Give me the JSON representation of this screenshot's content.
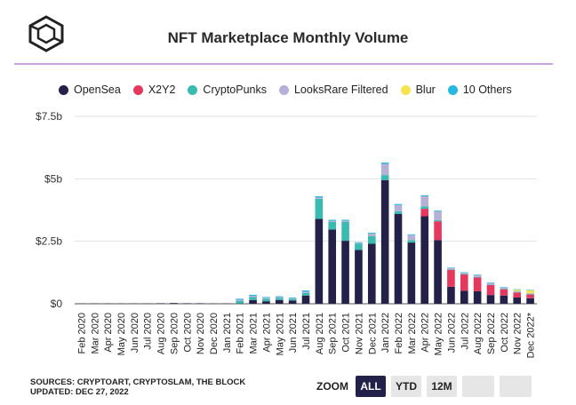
{
  "title": "NFT Marketplace Monthly Volume",
  "logo_icon": "cube-logo-icon",
  "legend": [
    {
      "name": "OpenSea",
      "color": "#23204a"
    },
    {
      "name": "X2Y2",
      "color": "#e5385e"
    },
    {
      "name": "CryptoPunks",
      "color": "#3bbbb0"
    },
    {
      "name": "LooksRare Filtered",
      "color": "#b6b0d9"
    },
    {
      "name": "Blur",
      "color": "#f5e34f"
    },
    {
      "name": "10 Others",
      "color": "#27b7e3"
    }
  ],
  "footer": {
    "sources": "SOURCES: CRYPTOART, CRYPTOSLAM, THE BLOCK",
    "updated": "UPDATED: DEC 27, 2022"
  },
  "zoom": {
    "label": "ZOOM",
    "buttons": [
      {
        "label": "ALL",
        "active": true
      },
      {
        "label": "YTD",
        "active": false
      },
      {
        "label": "12M",
        "active": false
      },
      {
        "label": "",
        "active": false
      },
      {
        "label": "",
        "active": false
      }
    ]
  },
  "chart_data": {
    "type": "bar",
    "stacked": true,
    "title": "NFT Marketplace Monthly Volume",
    "xlabel": "",
    "ylabel": "",
    "ylim": [
      0,
      7.5
    ],
    "y_ticks": [
      "$0",
      "$2.5b",
      "$5b",
      "$7.5b"
    ],
    "y_tick_values": [
      0,
      2.5,
      5,
      7.5
    ],
    "grid": true,
    "legend_position": "top",
    "categories": [
      "Feb 2020",
      "Mar 2020",
      "Apr 2020",
      "May 2020",
      "Jun 2020",
      "Jul 2020",
      "Aug 2020",
      "Sep 2020",
      "Oct 2020",
      "Nov 2020",
      "Dec 2020",
      "Jan 2021",
      "Feb 2021",
      "Mar 2021",
      "Apr 2021",
      "May 2021",
      "Jun 2021",
      "Jul 2021",
      "Aug 2021",
      "Sep 2021",
      "Oct 2021",
      "Nov 2021",
      "Dec 2021",
      "Jan 2022",
      "Feb 2022",
      "Mar 2022",
      "Apr 2022",
      "May 2022",
      "Jun 2022",
      "Jul 2022",
      "Aug 2022",
      "Sep 2022",
      "Oct 2022",
      "Nov 2022",
      "Dec 2022*"
    ],
    "series": [
      {
        "name": "OpenSea",
        "color": "#23204a",
        "values": [
          0.01,
          0.01,
          0.01,
          0.01,
          0.01,
          0.01,
          0.02,
          0.03,
          0.02,
          0.02,
          0.01,
          0.01,
          0.01,
          0.15,
          0.1,
          0.15,
          0.13,
          0.33,
          3.4,
          2.97,
          2.52,
          2.15,
          2.4,
          4.95,
          3.6,
          2.45,
          3.5,
          2.55,
          0.68,
          0.52,
          0.5,
          0.35,
          0.33,
          0.25,
          0.22
        ]
      },
      {
        "name": "X2Y2",
        "color": "#e5385e",
        "values": [
          0,
          0,
          0,
          0,
          0,
          0,
          0,
          0,
          0,
          0,
          0,
          0,
          0,
          0,
          0,
          0,
          0,
          0,
          0,
          0,
          0,
          0,
          0,
          0,
          0,
          0,
          0.3,
          0.75,
          0.68,
          0.65,
          0.55,
          0.4,
          0.25,
          0.2,
          0.15
        ]
      },
      {
        "name": "CryptoPunks",
        "color": "#3bbbb0",
        "values": [
          0,
          0,
          0,
          0,
          0,
          0,
          0,
          0,
          0,
          0,
          0,
          0,
          0.1,
          0.12,
          0.1,
          0.08,
          0.06,
          0.1,
          0.8,
          0.3,
          0.75,
          0.25,
          0.3,
          0.2,
          0.1,
          0.1,
          0.1,
          0.05,
          0.02,
          0.02,
          0.02,
          0.02,
          0.02,
          0.02,
          0.02
        ]
      },
      {
        "name": "LooksRare Filtered",
        "color": "#b6b0d9",
        "values": [
          0,
          0,
          0,
          0,
          0,
          0,
          0,
          0,
          0,
          0,
          0,
          0,
          0.05,
          0.05,
          0.04,
          0.04,
          0.03,
          0.05,
          0.05,
          0.05,
          0.05,
          0.03,
          0.1,
          0.45,
          0.25,
          0.2,
          0.4,
          0.35,
          0.05,
          0.05,
          0.08,
          0.06,
          0.05,
          0.04,
          0.03
        ]
      },
      {
        "name": "Blur",
        "color": "#f5e34f",
        "values": [
          0,
          0,
          0,
          0,
          0,
          0,
          0,
          0,
          0,
          0,
          0,
          0,
          0,
          0,
          0,
          0,
          0,
          0,
          0,
          0,
          0,
          0,
          0,
          0,
          0,
          0,
          0,
          0,
          0,
          0,
          0,
          0,
          0,
          0.05,
          0.12
        ]
      },
      {
        "name": "10 Others",
        "color": "#27b7e3",
        "values": [
          0,
          0,
          0,
          0,
          0,
          0,
          0,
          0,
          0,
          0,
          0,
          0,
          0.04,
          0.04,
          0.03,
          0.03,
          0.03,
          0.05,
          0.05,
          0.04,
          0.04,
          0.03,
          0.04,
          0.05,
          0.04,
          0.03,
          0.04,
          0.03,
          0.02,
          0.02,
          0.02,
          0.02,
          0.02,
          0.02,
          0.02
        ]
      }
    ]
  }
}
